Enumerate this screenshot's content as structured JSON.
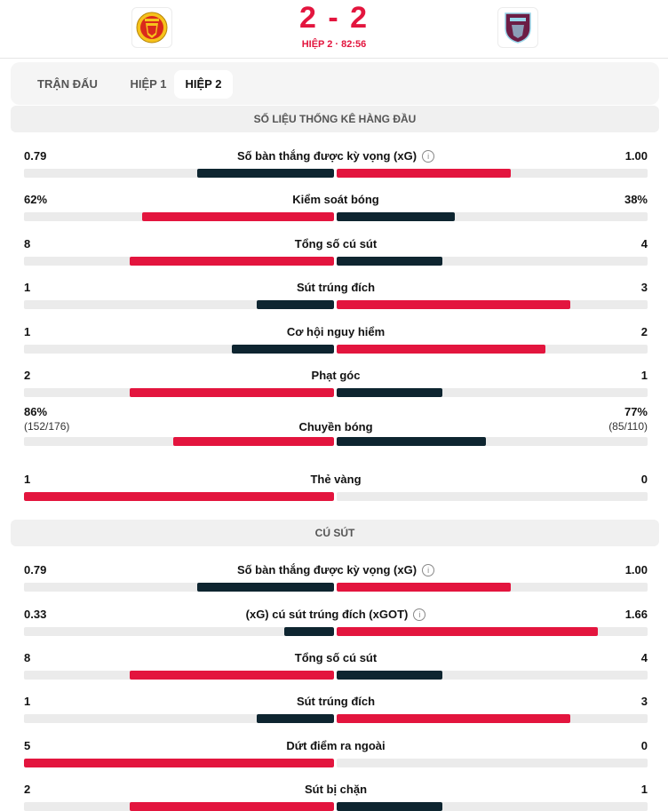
{
  "header": {
    "score": "2 - 2",
    "period": "HIỆP 2 · 82:56",
    "home_logo_icon": "manchester-united-crest-icon",
    "away_logo_icon": "burnley-crest-icon"
  },
  "tabs": [
    {
      "label": "TRẬN ĐẤU"
    },
    {
      "label": "HIỆP 1"
    },
    {
      "label": "HIỆP 2"
    }
  ],
  "selected_tab": "HIỆP 2",
  "colors": {
    "accent": "#e3153e",
    "dark": "#0e2530",
    "track": "#ebebeb"
  },
  "sections": [
    {
      "title": "SỐ LIỆU THỐNG KÊ HÀNG ĐẦU",
      "stats": [
        {
          "label": "Số bàn thắng được kỳ vọng (xG)",
          "info": true,
          "left": "0.79",
          "right": "1.00",
          "left_fill": 0.44,
          "right_fill": 0.56,
          "left_color": "#0e2530",
          "right_color": "#e3153e"
        },
        {
          "label": "Kiểm soát bóng",
          "info": false,
          "left": "62%",
          "right": "38%",
          "left_fill": 0.62,
          "right_fill": 0.38,
          "left_color": "#e3153e",
          "right_color": "#0e2530"
        },
        {
          "label": "Tổng số cú sút",
          "info": false,
          "left": "8",
          "right": "4",
          "left_fill": 0.66,
          "right_fill": 0.34,
          "left_color": "#e3153e",
          "right_color": "#0e2530"
        },
        {
          "label": "Sút trúng đích",
          "info": false,
          "left": "1",
          "right": "3",
          "left_fill": 0.25,
          "right_fill": 0.75,
          "left_color": "#0e2530",
          "right_color": "#e3153e"
        },
        {
          "label": "Cơ hội nguy hiểm",
          "info": false,
          "left": "1",
          "right": "2",
          "left_fill": 0.33,
          "right_fill": 0.67,
          "left_color": "#0e2530",
          "right_color": "#e3153e"
        },
        {
          "label": "Phạt góc",
          "info": false,
          "left": "2",
          "right": "1",
          "left_fill": 0.66,
          "right_fill": 0.34,
          "left_color": "#e3153e",
          "right_color": "#0e2530"
        },
        {
          "label": "Chuyền bóng",
          "info": false,
          "left": "86%",
          "right": "77%",
          "left_sub": "(152/176)",
          "right_sub": "(85/110)",
          "left_fill": 0.52,
          "right_fill": 0.48,
          "left_color": "#e3153e",
          "right_color": "#0e2530"
        },
        {
          "label": "Thẻ vàng",
          "info": false,
          "left": "1",
          "right": "0",
          "left_fill": 1.0,
          "right_fill": 0.0,
          "left_color": "#e3153e",
          "right_color": "#0e2530"
        }
      ]
    },
    {
      "title": "CÚ SÚT",
      "stats": [
        {
          "label": "Số bàn thắng được kỳ vọng (xG)",
          "info": true,
          "left": "0.79",
          "right": "1.00",
          "left_fill": 0.44,
          "right_fill": 0.56,
          "left_color": "#0e2530",
          "right_color": "#e3153e"
        },
        {
          "label": "(xG) cú sút trúng đích (xGOT)",
          "info": true,
          "left": "0.33",
          "right": "1.66",
          "left_fill": 0.16,
          "right_fill": 0.84,
          "left_color": "#0e2530",
          "right_color": "#e3153e"
        },
        {
          "label": "Tổng số cú sút",
          "info": false,
          "left": "8",
          "right": "4",
          "left_fill": 0.66,
          "right_fill": 0.34,
          "left_color": "#e3153e",
          "right_color": "#0e2530"
        },
        {
          "label": "Sút trúng đích",
          "info": false,
          "left": "1",
          "right": "3",
          "left_fill": 0.25,
          "right_fill": 0.75,
          "left_color": "#0e2530",
          "right_color": "#e3153e"
        },
        {
          "label": "Dứt điểm ra ngoài",
          "info": false,
          "left": "5",
          "right": "0",
          "left_fill": 1.0,
          "right_fill": 0.0,
          "left_color": "#e3153e",
          "right_color": "#0e2530"
        },
        {
          "label": "Sút bị chặn",
          "info": false,
          "left": "2",
          "right": "1",
          "left_fill": 0.66,
          "right_fill": 0.34,
          "left_color": "#e3153e",
          "right_color": "#0e2530"
        }
      ]
    }
  ]
}
